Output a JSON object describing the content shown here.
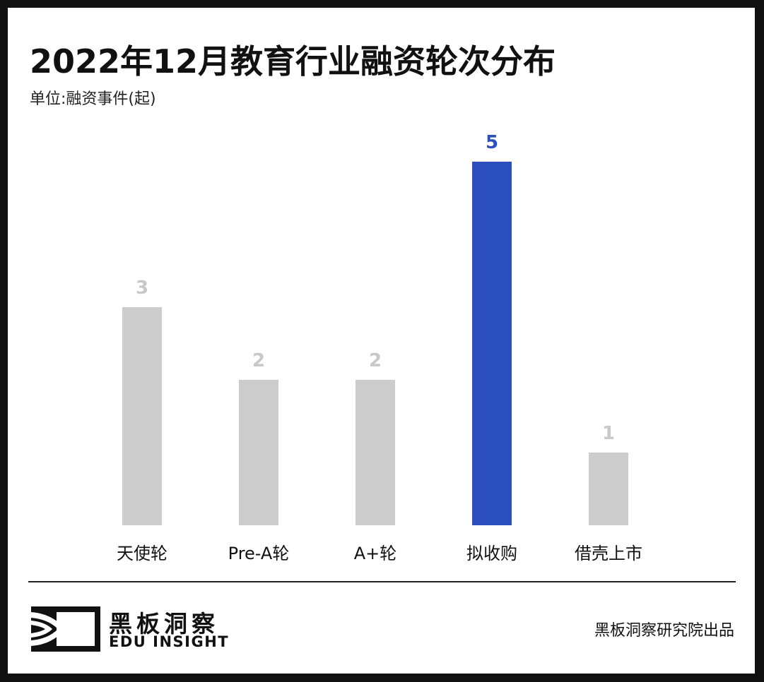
{
  "header": {
    "title": "2022年12月教育行业融资轮次分布",
    "unit": "单位:融资事件(起)"
  },
  "colors": {
    "frame": "#111111",
    "background": "#ffffff",
    "bar_default": "#cccccc",
    "bar_highlight": "#2b50bd",
    "value_default": "#c8c8c8",
    "value_highlight": "#2b50bd"
  },
  "chart_data": {
    "type": "bar",
    "title": "2022年12月教育行业融资轮次分布",
    "subtitle": "单位:融资事件(起)",
    "xlabel": "",
    "ylabel": "融资事件(起)",
    "categories": [
      "天使轮",
      "Pre-A轮",
      "A+轮",
      "拟收购",
      "借壳上市"
    ],
    "values": [
      3,
      2,
      2,
      5,
      1
    ],
    "highlight_index": 3,
    "ylim": [
      0,
      5
    ],
    "grid": false,
    "legend": "none",
    "data_labels": [
      "3",
      "2",
      "2",
      "5",
      "1"
    ]
  },
  "footer": {
    "logo_cn": "黑板洞察",
    "logo_en": "EDU INSIGHT",
    "logo_icon": "eye-in-frame-icon",
    "credit": "黑板洞察研究院出品"
  }
}
